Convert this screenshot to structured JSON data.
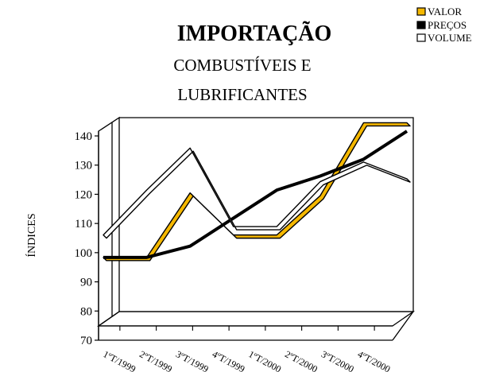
{
  "chart_data": {
    "type": "line",
    "title": "IMPORTAÇÃO",
    "subtitle_lines": [
      "COMBUSTÍVEIS E",
      "LUBRIFICANTES"
    ],
    "ylabel": "ÍNDICES",
    "xlabel": "",
    "ylim": [
      70,
      140
    ],
    "yticks": [
      70,
      80,
      90,
      100,
      110,
      120,
      130,
      140
    ],
    "categories": [
      "1ºT/1999",
      "2ºT/1999",
      "3ºT/1999",
      "4ºT/1999",
      "1ºT/2000",
      "2ºT/2000",
      "3ºT/2000",
      "4ºT/2000"
    ],
    "series": [
      {
        "name": "VALOR",
        "values": [
          93,
          93,
          116,
          101,
          101,
          115,
          141,
          141
        ],
        "color": "#f5b800",
        "style": "ribbon"
      },
      {
        "name": "PREÇOS",
        "values": [
          93,
          93,
          97,
          107,
          117,
          122,
          128,
          138
        ],
        "color": "#000000",
        "style": "thick"
      },
      {
        "name": "VOLUME",
        "values": [
          101,
          117,
          132,
          104,
          104,
          120,
          127,
          121
        ],
        "color": "#ffffff",
        "style": "ribbon"
      }
    ],
    "legend_position": "top-right",
    "grid": false
  }
}
